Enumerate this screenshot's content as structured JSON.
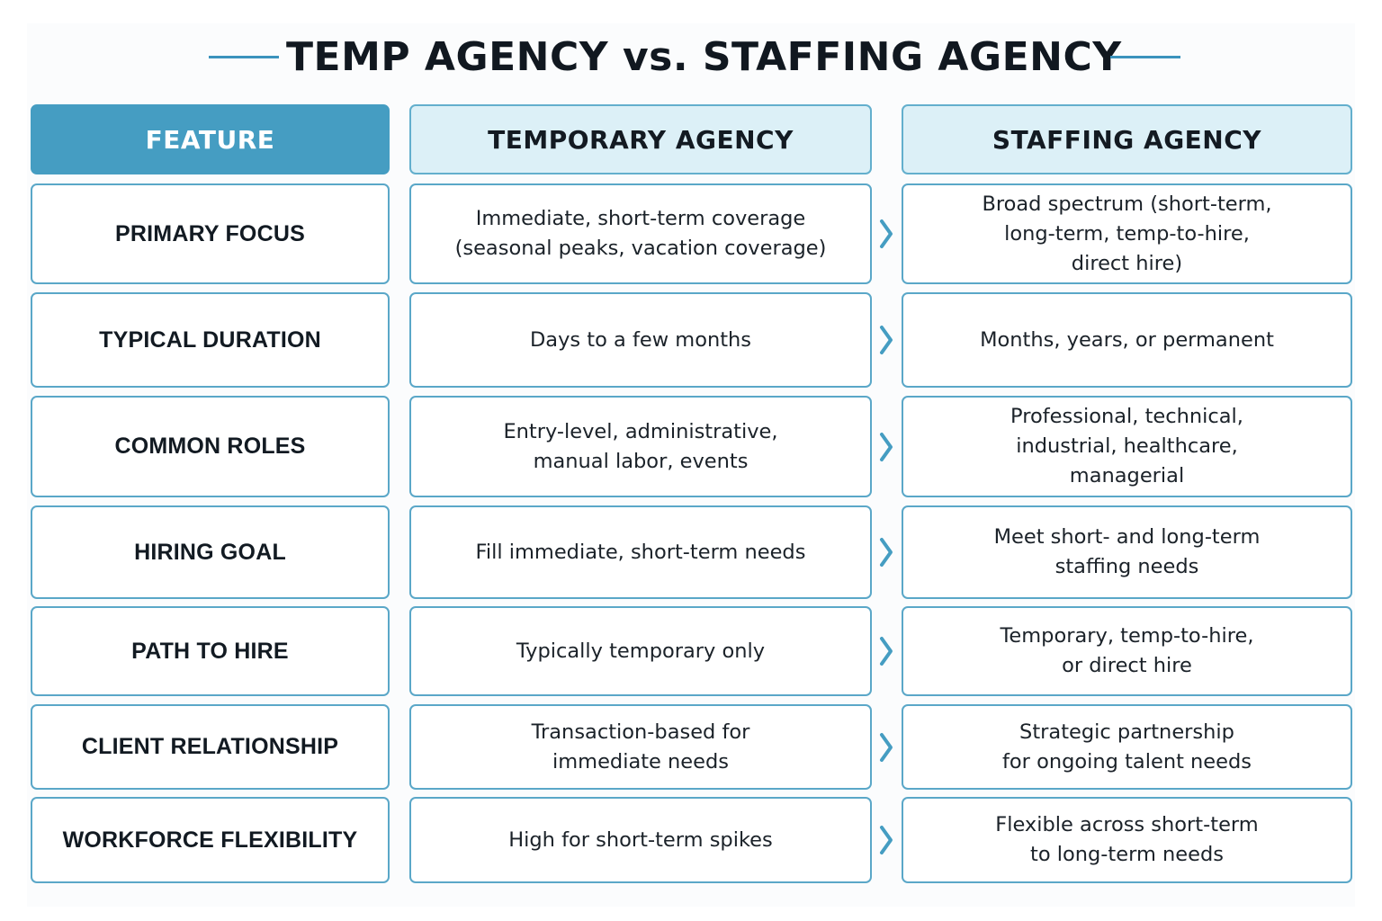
{
  "title": "TEMP AGENCY vs. STAFFING AGENCY",
  "accent_color": "#459dc2",
  "header": {
    "feature": "FEATURE",
    "temporary": "TEMPORARY AGENCY",
    "staffing": "STAFFING AGENCY"
  },
  "rows": [
    {
      "feature": "PRIMARY FOCUS",
      "temporary": [
        "Immediate, short-term coverage",
        "(seasonal peaks, vacation coverage)"
      ],
      "staffing": [
        "Broad spectrum (short-term,",
        "long-term, temp-to-hire,",
        "direct hire)"
      ]
    },
    {
      "feature": "TYPICAL DURATION",
      "temporary": [
        "Days to a few months"
      ],
      "staffing": [
        "Months, years, or permanent"
      ]
    },
    {
      "feature": "COMMON ROLES",
      "temporary": [
        "Entry-level, administrative,",
        "manual labor, events"
      ],
      "staffing": [
        "Professional, technical,",
        "industrial, healthcare,",
        "managerial"
      ]
    },
    {
      "feature": "HIRING GOAL",
      "temporary": [
        "Fill immediate, short-term needs"
      ],
      "staffing": [
        "Meet short- and long-term",
        "staffing needs"
      ]
    },
    {
      "feature": "PATH TO HIRE",
      "temporary": [
        "Typically temporary only"
      ],
      "staffing": [
        "Temporary, temp-to-hire,",
        "or direct hire"
      ]
    },
    {
      "feature": "CLIENT RELATIONSHIP",
      "temporary": [
        "Transaction-based for",
        "immediate needs"
      ],
      "staffing": [
        "Strategic partnership",
        "for ongoing talent needs"
      ]
    },
    {
      "feature": "WORKFORCE FLEXIBILITY",
      "temporary": [
        "High for short-term spikes"
      ],
      "staffing": [
        "Flexible across short-term",
        "to long-term needs"
      ]
    }
  ]
}
